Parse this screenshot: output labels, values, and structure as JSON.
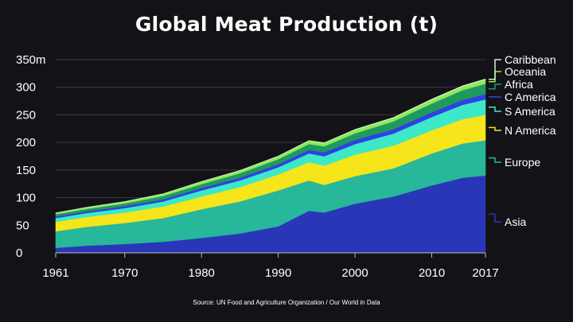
{
  "chart_data": {
    "type": "area",
    "stacked": true,
    "title": "Global Meat Production (t)",
    "source": "Source: UN Food and Agriculture Organization / Our World in Data",
    "xlabel": "",
    "ylabel": "",
    "xlim": [
      1961,
      2017
    ],
    "ylim": [
      0,
      350
    ],
    "x_ticks": [
      1961,
      1970,
      1980,
      1990,
      2000,
      2010,
      2017
    ],
    "y_ticks": [
      0,
      50,
      100,
      150,
      200,
      250,
      300,
      350
    ],
    "y_tick_labels": [
      "0",
      "50",
      "100",
      "150",
      "200",
      "250",
      "300",
      "350m"
    ],
    "grid": true,
    "legend_position": "right",
    "x": [
      1961,
      1965,
      1970,
      1975,
      1980,
      1985,
      1990,
      1994,
      1996,
      2000,
      2005,
      2010,
      2014,
      2017
    ],
    "series": [
      {
        "name": "Asia",
        "color": "#2a36b8",
        "values": [
          9,
          13,
          16,
          20,
          27,
          35,
          48,
          76,
          73,
          89,
          102,
          122,
          136,
          140
        ]
      },
      {
        "name": "Europe",
        "color": "#27b79a",
        "values": [
          30,
          34,
          38,
          43,
          52,
          58,
          65,
          55,
          50,
          50,
          51,
          58,
          62,
          64
        ]
      },
      {
        "name": "N America",
        "color": "#f5e51a",
        "values": [
          17,
          18,
          19,
          21,
          23,
          26,
          29,
          33,
          35,
          39,
          41,
          42,
          44,
          46
        ]
      },
      {
        "name": "S America",
        "color": "#3de8c8",
        "values": [
          7,
          7,
          8,
          9,
          11,
          12,
          13,
          16,
          17,
          19,
          22,
          24,
          26,
          28
        ]
      },
      {
        "name": "C America",
        "color": "#3040e6",
        "values": [
          3,
          3,
          3.5,
          4,
          4.5,
          5,
          5.5,
          6.5,
          7,
          7.5,
          8,
          8.5,
          9,
          9.5
        ]
      },
      {
        "name": "Africa",
        "color": "#1f9a5e",
        "values": [
          4,
          4.5,
          5,
          6,
          7,
          8,
          9,
          10.5,
          11,
          12,
          14,
          16,
          17.5,
          19
        ]
      },
      {
        "name": "Oceania",
        "color": "#8fe85a",
        "values": [
          2,
          2.5,
          3,
          3.5,
          4,
          4.5,
          5,
          5.5,
          5.5,
          6,
          6,
          6.5,
          6.5,
          7
        ]
      },
      {
        "name": "Caribbean",
        "color": "#c9f7c0",
        "values": [
          0.5,
          0.5,
          0.6,
          0.7,
          0.8,
          0.9,
          1,
          1,
          1,
          1.2,
          1.3,
          1.5,
          1.6,
          1.7
        ]
      }
    ]
  }
}
